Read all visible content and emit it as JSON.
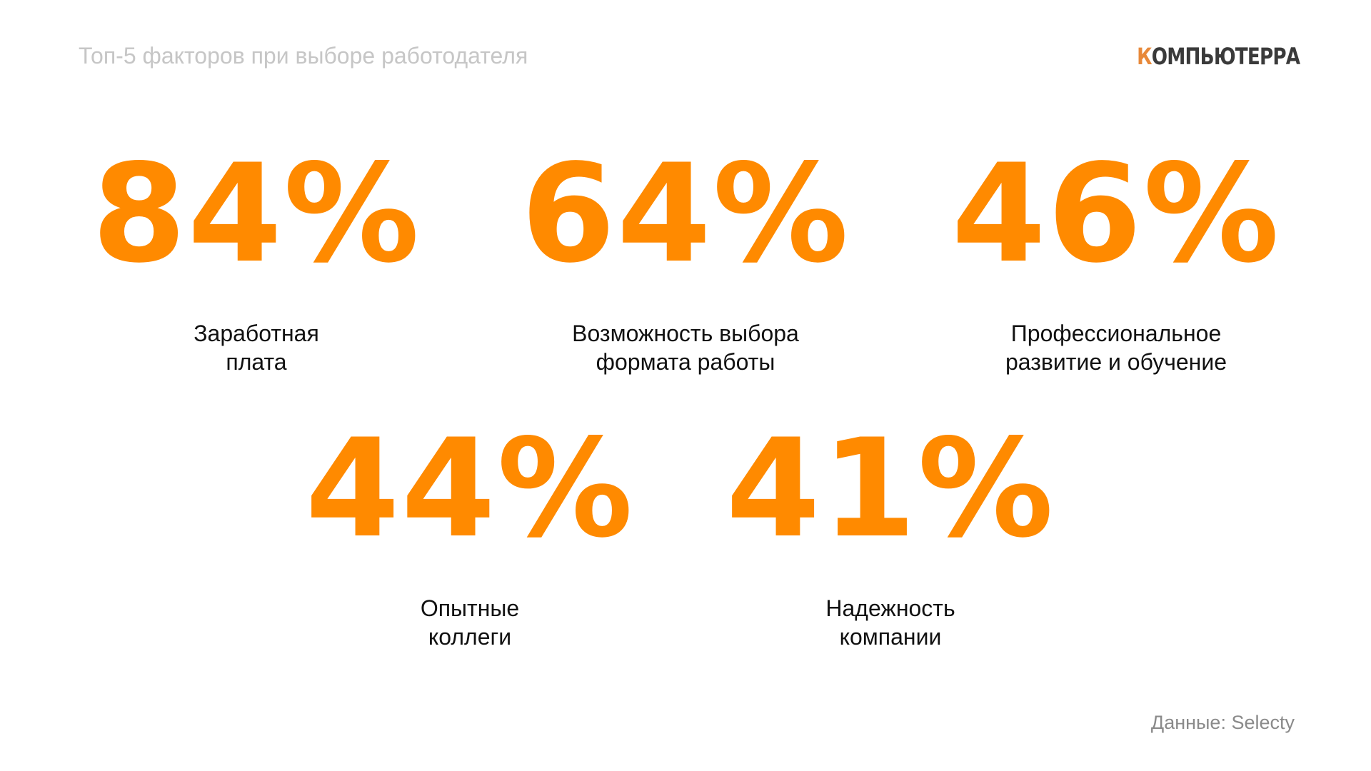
{
  "header": {
    "title": "Топ-5 факторов при выборе работодателя",
    "logo": "КОМПЬЮТЕРРА"
  },
  "items": [
    {
      "value": "84%",
      "label": [
        "Заработная",
        "плата"
      ]
    },
    {
      "value": "64%",
      "label": [
        "Возможность выбора",
        "формата работы"
      ]
    },
    {
      "value": "46%",
      "label": [
        "Профессиональное",
        "развитие и обучение"
      ]
    },
    {
      "value": "44%",
      "label": [
        "Опытные",
        "коллеги"
      ]
    },
    {
      "value": "41%",
      "label": [
        "Надежность",
        "компании"
      ]
    }
  ],
  "footer": {
    "source": "Данные: Selecty"
  }
}
